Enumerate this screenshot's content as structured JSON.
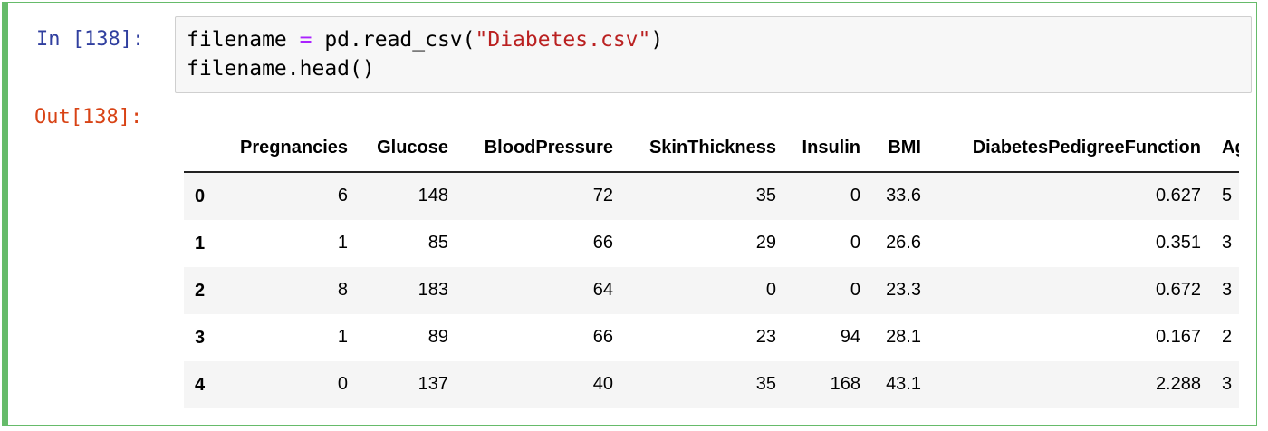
{
  "input_prompt": "In [138]:",
  "code": [
    [
      "filename ",
      "=",
      " pd.read_csv(",
      "\"Diabetes.csv\"",
      ")"
    ],
    [
      "filename.head()"
    ]
  ],
  "output_prompt": "Out[138]:",
  "table": {
    "columns": [
      "Pregnancies",
      "Glucose",
      "BloodPressure",
      "SkinThickness",
      "Insulin",
      "BMI",
      "DiabetesPedigreeFunction",
      "Ag"
    ],
    "index": [
      "0",
      "1",
      "2",
      "3",
      "4"
    ],
    "rows": [
      [
        "6",
        "148",
        "72",
        "35",
        "0",
        "33.6",
        "0.627",
        "5"
      ],
      [
        "1",
        "85",
        "66",
        "29",
        "0",
        "26.6",
        "0.351",
        "3"
      ],
      [
        "8",
        "183",
        "64",
        "0",
        "0",
        "23.3",
        "0.672",
        "3"
      ],
      [
        "1",
        "89",
        "66",
        "23",
        "94",
        "28.1",
        "0.167",
        "2"
      ],
      [
        "0",
        "137",
        "40",
        "35",
        "168",
        "43.1",
        "2.288",
        "3"
      ]
    ]
  }
}
